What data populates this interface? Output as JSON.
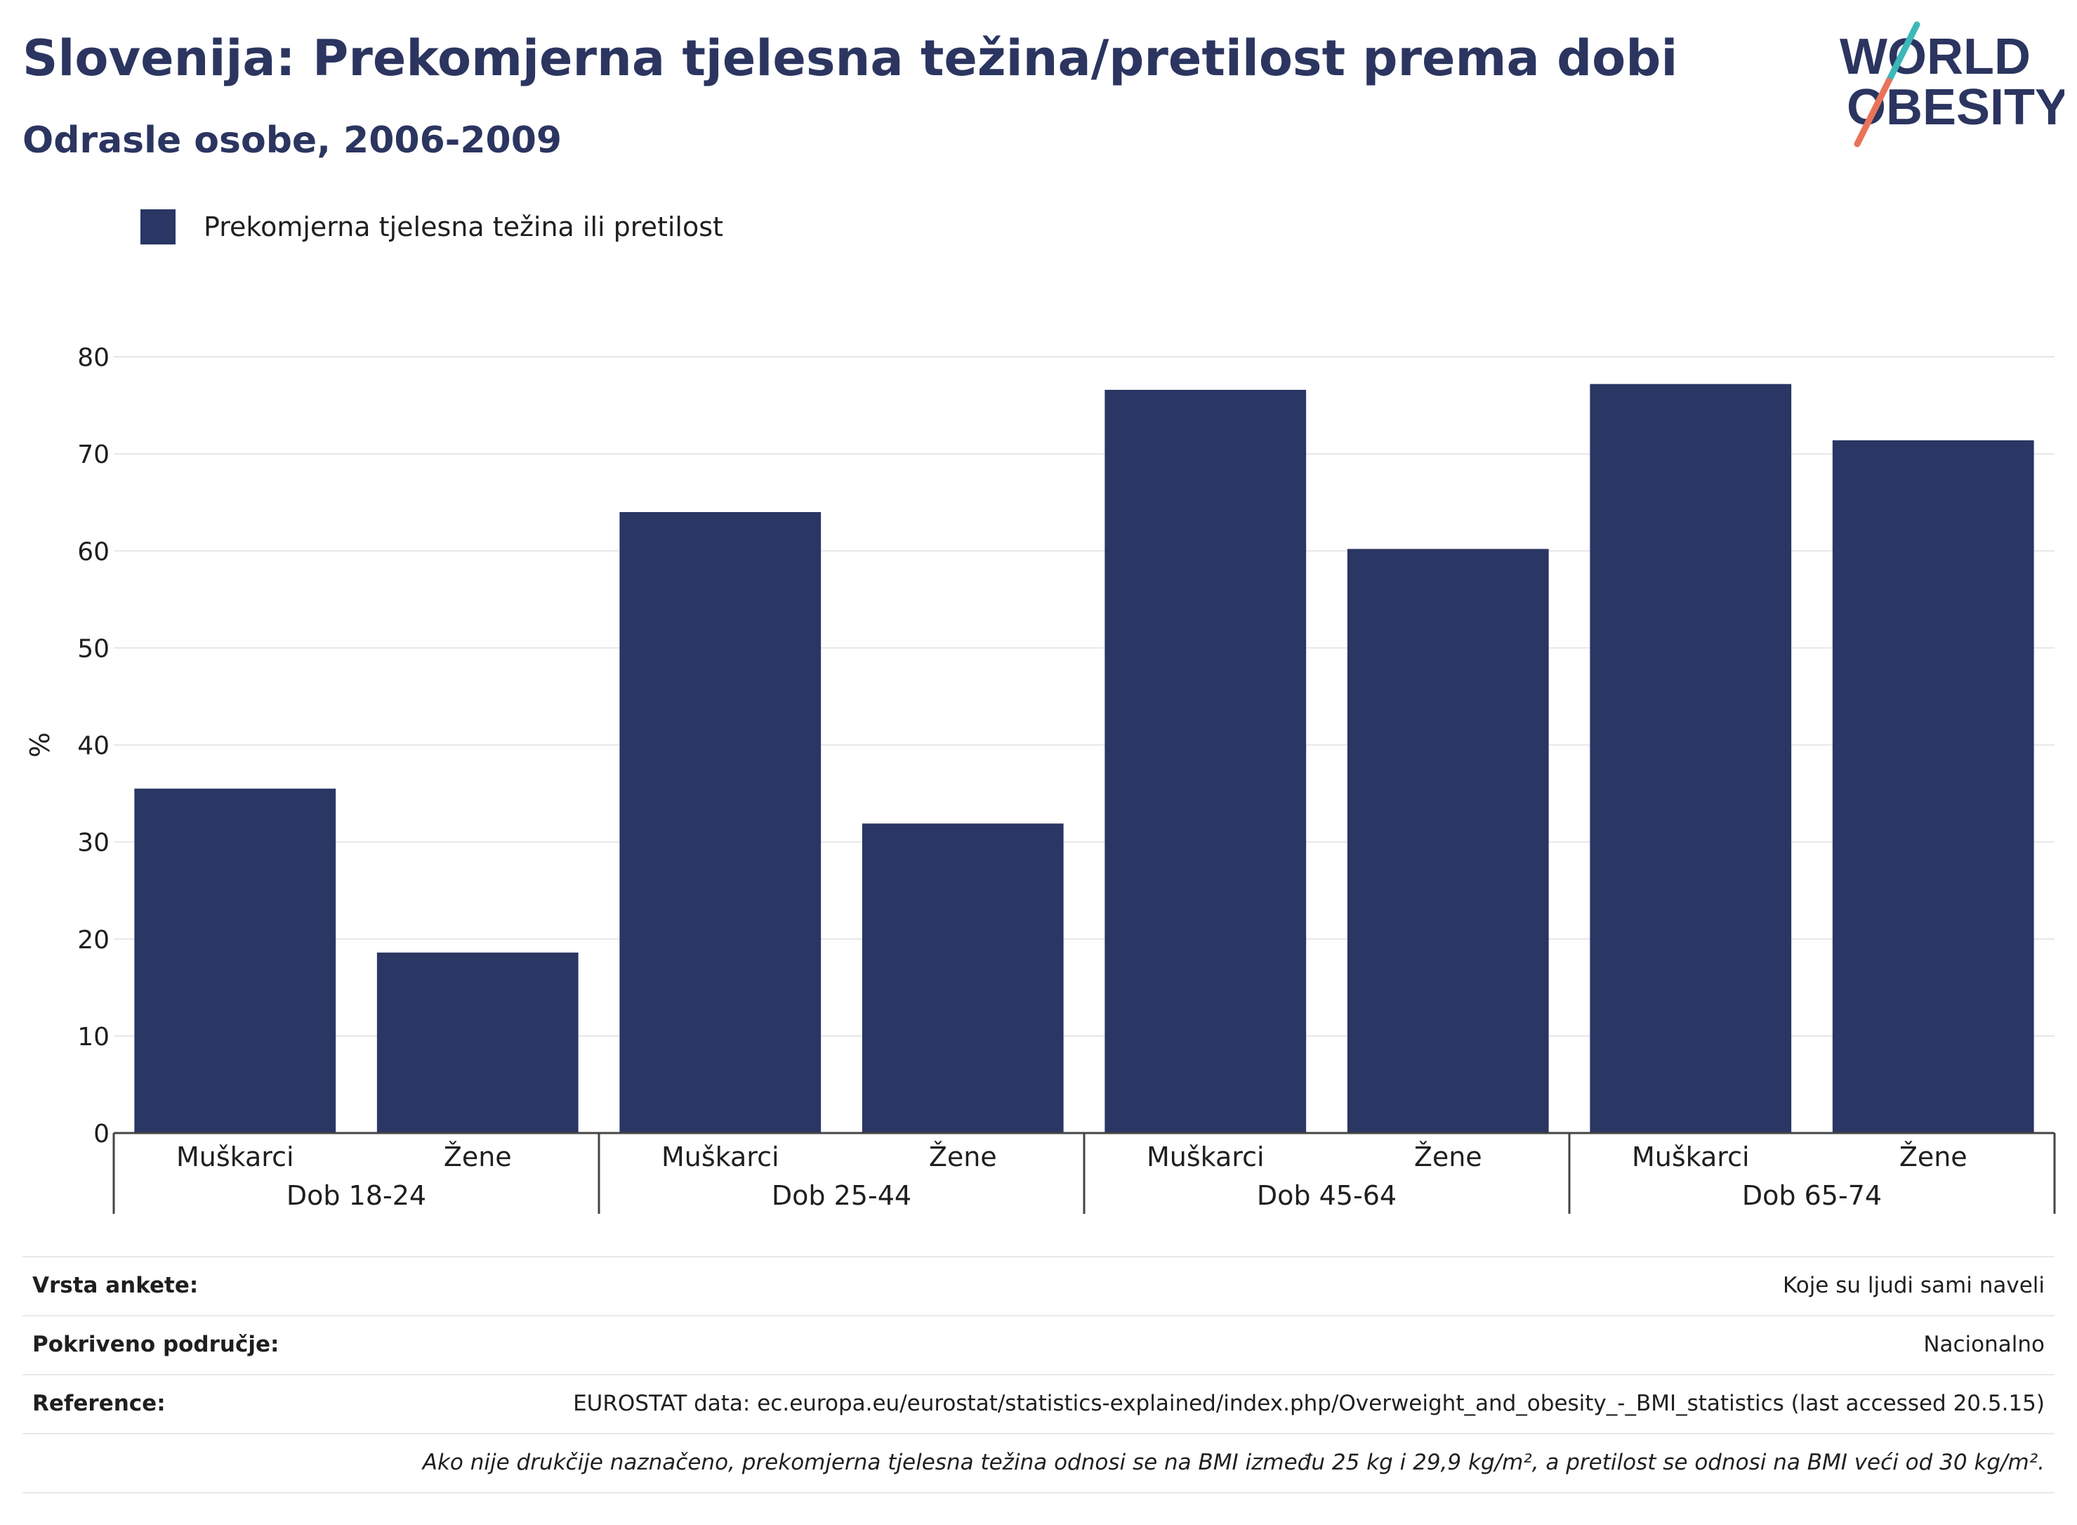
{
  "title": "Slovenija: Prekomjerna tjelesna težina/pretilost prema dobi",
  "subtitle": "Odrasle osobe, 2006-2009",
  "logo": {
    "line1": "WORLD",
    "line2": "OBESITY"
  },
  "colors": {
    "bar": "#2a3663",
    "title": "#2b3560",
    "logo_teal": "#3bb8b8",
    "logo_coral": "#e8735a"
  },
  "chart_data": {
    "type": "bar",
    "legend": [
      "Prekomjerna tjelesna težina ili pretilost"
    ],
    "legend_position": "top-left",
    "ylabel": "%",
    "ylim": [
      0,
      80
    ],
    "yticks": [
      0,
      10,
      20,
      30,
      40,
      50,
      60,
      70,
      80
    ],
    "grid": true,
    "groups": [
      "Dob 18-24",
      "Dob 25-44",
      "Dob 45-64",
      "Dob 65-74"
    ],
    "categories": [
      "Muškarci",
      "Žene",
      "Muškarci",
      "Žene",
      "Muškarci",
      "Žene",
      "Muškarci",
      "Žene"
    ],
    "series": [
      {
        "name": "Prekomjerna tjelesna težina ili pretilost",
        "values": [
          35.5,
          18.6,
          64.0,
          31.9,
          76.6,
          60.2,
          77.2,
          71.4
        ]
      }
    ]
  },
  "info": {
    "survey_label": "Vrsta ankete:",
    "survey_value": "Koje su ljudi sami naveli",
    "coverage_label": "Pokriveno područje:",
    "coverage_value": "Nacionalno",
    "reference_label": "Reference:",
    "reference_value": "EUROSTAT data: ec.europa.eu/eurostat/statistics-explained/index.php/Overweight_and_obesity_-_BMI_statistics (last accessed 20.5.15)",
    "note": "Ako nije drukčije naznačeno, prekomjerna tjelesna težina odnosi se na BMI između 25 kg i 29,9 kg/m², a pretilost se odnosi na BMI veći od 30 kg/m²."
  }
}
